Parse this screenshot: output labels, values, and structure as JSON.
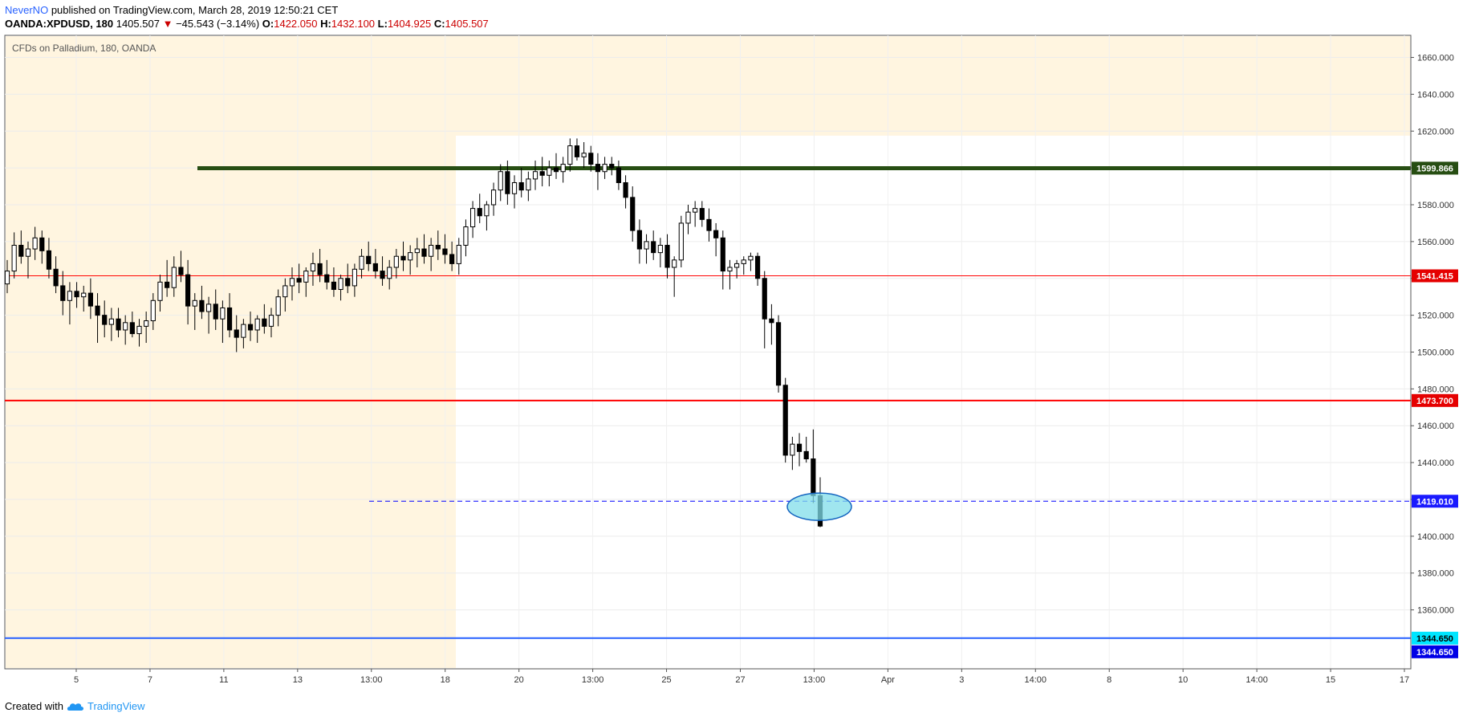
{
  "header": {
    "author": "NeverNO",
    "published_text": "published on TradingView.com, March 28, 2019 12:50:21 CET",
    "symbol": "OANDA:XPDUSD, 180",
    "last": "1405.507",
    "change_arrow": "▼",
    "change": "−45.543 (−3.14%)",
    "o_label": "O:",
    "o_value": "1422.050",
    "h_label": "H:",
    "h_value": "1432.100",
    "l_label": "L:",
    "l_value": "1404.925",
    "c_label": "C:",
    "c_value": "1405.507"
  },
  "footer": {
    "created_with": "Created with",
    "brand": "TradingView"
  },
  "colors": {
    "shade": "#fff5e0",
    "green_line": "#274e13",
    "red_line": "#ff0000",
    "dashed_line": "#0000ff",
    "blue_line": "#2962ff",
    "ellipse_fill": "#80deea",
    "ellipse_stroke": "#1565c0",
    "label_green": "#274e13",
    "label_red": "#e50000",
    "label_navy": "#1a1aff",
    "label_cyan": "#00e5ff",
    "label_blue": "#0000e6"
  },
  "chart_data": {
    "type": "candlestick",
    "title": "CFDs on Palladium, 180, OANDA",
    "ylim": [
      1328,
      1672
    ],
    "y_ticks": [
      1360,
      1380,
      1400,
      1420,
      1440,
      1460,
      1480,
      1500,
      1520,
      1540,
      1560,
      1580,
      1600,
      1620,
      1640,
      1660
    ],
    "y_tick_labels": [
      "1360.000",
      "1380.000",
      "1400.000",
      "1420.000",
      "1440.000",
      "1460.000",
      "1480.000",
      "1500.000",
      "1520.000",
      "1540.000",
      "1560.000",
      "1580.000",
      "1600.000",
      "1620.000",
      "1640.000",
      "1660.000"
    ],
    "x_ticks": [
      "5",
      "7",
      "11",
      "13",
      "13:00",
      "18",
      "20",
      "13:00",
      "25",
      "27",
      "13:00",
      "Apr",
      "3",
      "14:00",
      "8",
      "10",
      "14:00",
      "15",
      "17"
    ],
    "levels": [
      {
        "value": 1599.866,
        "label": "1599.866",
        "style": "green"
      },
      {
        "value": 1541.415,
        "label": "1541.415",
        "style": "red-thin"
      },
      {
        "value": 1473.7,
        "label": "1473.700",
        "style": "red"
      },
      {
        "value": 1419.01,
        "label": "1419.010",
        "style": "dashed"
      },
      {
        "value": 1344.65,
        "label": "1344.650",
        "style": "blue"
      }
    ],
    "extra_labels": [
      {
        "value": 1344.65,
        "label": "1344.650"
      }
    ],
    "candles": [
      [
        1537,
        1550,
        1532,
        1544
      ],
      [
        1544,
        1565,
        1540,
        1558
      ],
      [
        1558,
        1566,
        1548,
        1552
      ],
      [
        1552,
        1560,
        1540,
        1556
      ],
      [
        1556,
        1568,
        1550,
        1562
      ],
      [
        1562,
        1566,
        1548,
        1555
      ],
      [
        1555,
        1562,
        1540,
        1545
      ],
      [
        1545,
        1552,
        1532,
        1536
      ],
      [
        1536,
        1544,
        1520,
        1528
      ],
      [
        1528,
        1538,
        1515,
        1533
      ],
      [
        1533,
        1538,
        1524,
        1530
      ],
      [
        1530,
        1536,
        1522,
        1532
      ],
      [
        1532,
        1540,
        1518,
        1525
      ],
      [
        1525,
        1532,
        1505,
        1520
      ],
      [
        1520,
        1528,
        1508,
        1515
      ],
      [
        1515,
        1524,
        1506,
        1518
      ],
      [
        1518,
        1524,
        1508,
        1512
      ],
      [
        1512,
        1520,
        1504,
        1516
      ],
      [
        1516,
        1522,
        1508,
        1510
      ],
      [
        1510,
        1518,
        1503,
        1514
      ],
      [
        1514,
        1522,
        1505,
        1517
      ],
      [
        1517,
        1532,
        1512,
        1528
      ],
      [
        1528,
        1542,
        1522,
        1538
      ],
      [
        1538,
        1550,
        1530,
        1535
      ],
      [
        1535,
        1552,
        1530,
        1546
      ],
      [
        1546,
        1555,
        1538,
        1542
      ],
      [
        1542,
        1550,
        1515,
        1525
      ],
      [
        1525,
        1532,
        1512,
        1528
      ],
      [
        1528,
        1536,
        1518,
        1522
      ],
      [
        1522,
        1530,
        1510,
        1526
      ],
      [
        1526,
        1534,
        1512,
        1518
      ],
      [
        1518,
        1528,
        1505,
        1524
      ],
      [
        1524,
        1532,
        1508,
        1512
      ],
      [
        1512,
        1520,
        1500,
        1508
      ],
      [
        1508,
        1518,
        1502,
        1515
      ],
      [
        1515,
        1522,
        1506,
        1512
      ],
      [
        1512,
        1520,
        1505,
        1518
      ],
      [
        1518,
        1526,
        1510,
        1514
      ],
      [
        1514,
        1524,
        1508,
        1520
      ],
      [
        1520,
        1534,
        1514,
        1530
      ],
      [
        1530,
        1540,
        1522,
        1536
      ],
      [
        1536,
        1546,
        1528,
        1540
      ],
      [
        1540,
        1548,
        1532,
        1538
      ],
      [
        1538,
        1546,
        1530,
        1544
      ],
      [
        1544,
        1554,
        1536,
        1548
      ],
      [
        1548,
        1556,
        1538,
        1542
      ],
      [
        1542,
        1550,
        1534,
        1538
      ],
      [
        1538,
        1546,
        1530,
        1534
      ],
      [
        1534,
        1542,
        1528,
        1540
      ],
      [
        1540,
        1548,
        1532,
        1536
      ],
      [
        1536,
        1548,
        1530,
        1545
      ],
      [
        1545,
        1556,
        1540,
        1552
      ],
      [
        1552,
        1560,
        1544,
        1548
      ],
      [
        1548,
        1556,
        1540,
        1544
      ],
      [
        1544,
        1552,
        1536,
        1540
      ],
      [
        1540,
        1550,
        1534,
        1546
      ],
      [
        1546,
        1556,
        1540,
        1552
      ],
      [
        1552,
        1560,
        1544,
        1550
      ],
      [
        1550,
        1558,
        1542,
        1554
      ],
      [
        1554,
        1562,
        1546,
        1556
      ],
      [
        1556,
        1564,
        1548,
        1552
      ],
      [
        1552,
        1562,
        1544,
        1558
      ],
      [
        1558,
        1566,
        1550,
        1556
      ],
      [
        1556,
        1564,
        1548,
        1553
      ],
      [
        1553,
        1560,
        1544,
        1548
      ],
      [
        1548,
        1562,
        1542,
        1558
      ],
      [
        1558,
        1572,
        1552,
        1568
      ],
      [
        1568,
        1582,
        1562,
        1578
      ],
      [
        1578,
        1586,
        1570,
        1574
      ],
      [
        1574,
        1582,
        1566,
        1580
      ],
      [
        1580,
        1592,
        1574,
        1588
      ],
      [
        1588,
        1602,
        1582,
        1598
      ],
      [
        1598,
        1604,
        1580,
        1586
      ],
      [
        1586,
        1596,
        1578,
        1592
      ],
      [
        1592,
        1600,
        1584,
        1588
      ],
      [
        1588,
        1598,
        1582,
        1594
      ],
      [
        1594,
        1604,
        1588,
        1598
      ],
      [
        1598,
        1606,
        1590,
        1596
      ],
      [
        1596,
        1604,
        1590,
        1600
      ],
      [
        1600,
        1608,
        1594,
        1598
      ],
      [
        1598,
        1606,
        1592,
        1602
      ],
      [
        1602,
        1616,
        1598,
        1612
      ],
      [
        1612,
        1616,
        1604,
        1606
      ],
      [
        1606,
        1614,
        1600,
        1608
      ],
      [
        1608,
        1612,
        1598,
        1602
      ],
      [
        1602,
        1608,
        1588,
        1598
      ],
      [
        1598,
        1606,
        1594,
        1602
      ],
      [
        1602,
        1606,
        1596,
        1600
      ],
      [
        1600,
        1604,
        1588,
        1592
      ],
      [
        1592,
        1596,
        1578,
        1584
      ],
      [
        1584,
        1590,
        1560,
        1566
      ],
      [
        1566,
        1572,
        1548,
        1556
      ],
      [
        1556,
        1564,
        1548,
        1560
      ],
      [
        1560,
        1566,
        1550,
        1554
      ],
      [
        1554,
        1562,
        1546,
        1558
      ],
      [
        1558,
        1564,
        1540,
        1546
      ],
      [
        1546,
        1552,
        1530,
        1550
      ],
      [
        1550,
        1574,
        1546,
        1570
      ],
      [
        1570,
        1580,
        1564,
        1576
      ],
      [
        1576,
        1582,
        1568,
        1578
      ],
      [
        1578,
        1582,
        1568,
        1572
      ],
      [
        1572,
        1578,
        1560,
        1566
      ],
      [
        1566,
        1570,
        1552,
        1562
      ],
      [
        1562,
        1566,
        1534,
        1544
      ],
      [
        1544,
        1550,
        1534,
        1546
      ],
      [
        1546,
        1550,
        1540,
        1548
      ],
      [
        1548,
        1552,
        1542,
        1550
      ],
      [
        1550,
        1554,
        1544,
        1552
      ],
      [
        1552,
        1554,
        1536,
        1540
      ],
      [
        1540,
        1544,
        1502,
        1518
      ],
      [
        1518,
        1526,
        1504,
        1516
      ],
      [
        1516,
        1520,
        1478,
        1482
      ],
      [
        1482,
        1486,
        1440,
        1444
      ],
      [
        1444,
        1454,
        1436,
        1450
      ],
      [
        1450,
        1456,
        1438,
        1446
      ],
      [
        1446,
        1454,
        1440,
        1442
      ],
      [
        1442,
        1458,
        1418,
        1422
      ],
      [
        1422,
        1432,
        1404.925,
        1405.507
      ]
    ]
  }
}
